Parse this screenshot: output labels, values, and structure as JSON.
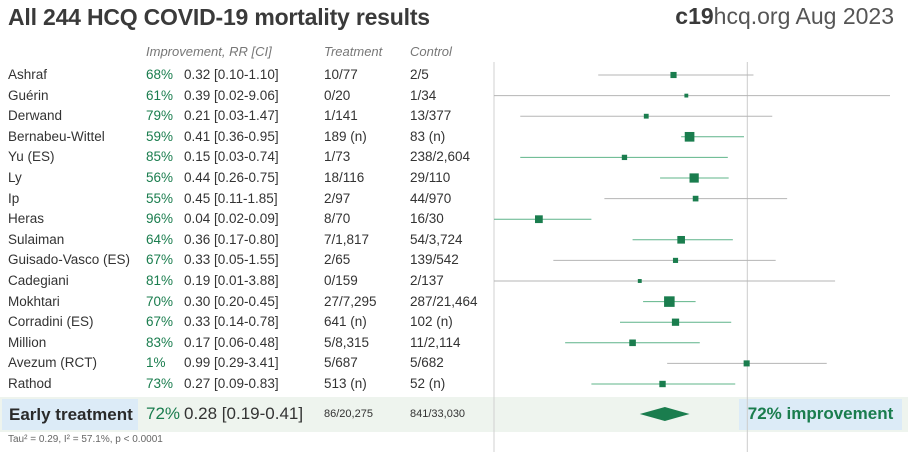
{
  "title": "All 244 HCQ COVID-19 mortality results",
  "brand": {
    "bold": "c19",
    "rest": "hcq.org Aug 2023"
  },
  "columns": {
    "improvement": "Improvement, RR [CI]",
    "treatment": "Treatment",
    "control": "Control"
  },
  "chart_data": {
    "type": "forest",
    "x_scale": "log",
    "reference_value": 1,
    "colors": {
      "marker": "#1a7d4e",
      "ci_line": "#5fb48a",
      "ci_line_crossing": "#b5b5b5",
      "reference_line": "#cccccc"
    },
    "studies": [
      {
        "name": "Ashraf",
        "improvement": "68%",
        "rr": 0.32,
        "ci_low": 0.1,
        "ci_high": 1.1,
        "rr_text": "0.32 [0.10-1.10]",
        "treatment": "10/77",
        "control": "2/5"
      },
      {
        "name": "Guérin",
        "improvement": "61%",
        "rr": 0.39,
        "ci_low": 0.02,
        "ci_high": 9.06,
        "rr_text": "0.39 [0.02-9.06]",
        "treatment": "0/20",
        "control": "1/34"
      },
      {
        "name": "Derwand",
        "improvement": "79%",
        "rr": 0.21,
        "ci_low": 0.03,
        "ci_high": 1.47,
        "rr_text": "0.21 [0.03-1.47]",
        "treatment": "1/141",
        "control": "13/377"
      },
      {
        "name": "Bernabeu-Wittel",
        "improvement": "59%",
        "rr": 0.41,
        "ci_low": 0.36,
        "ci_high": 0.95,
        "rr_text": "0.41 [0.36-0.95]",
        "treatment": "189 (n)",
        "control": "83 (n)"
      },
      {
        "name": "Yu (ES)",
        "improvement": "85%",
        "rr": 0.15,
        "ci_low": 0.03,
        "ci_high": 0.74,
        "rr_text": "0.15 [0.03-0.74]",
        "treatment": "1/73",
        "control": "238/2,604"
      },
      {
        "name": "Ly",
        "improvement": "56%",
        "rr": 0.44,
        "ci_low": 0.26,
        "ci_high": 0.75,
        "rr_text": "0.44 [0.26-0.75]",
        "treatment": "18/116",
        "control": "29/110"
      },
      {
        "name": "Ip",
        "improvement": "55%",
        "rr": 0.45,
        "ci_low": 0.11,
        "ci_high": 1.85,
        "rr_text": "0.45 [0.11-1.85]",
        "treatment": "2/97",
        "control": "44/970"
      },
      {
        "name": "Heras",
        "improvement": "96%",
        "rr": 0.04,
        "ci_low": 0.02,
        "ci_high": 0.09,
        "rr_text": "0.04 [0.02-0.09]",
        "treatment": "8/70",
        "control": "16/30"
      },
      {
        "name": "Sulaiman",
        "improvement": "64%",
        "rr": 0.36,
        "ci_low": 0.17,
        "ci_high": 0.8,
        "rr_text": "0.36 [0.17-0.80]",
        "treatment": "7/1,817",
        "control": "54/3,724"
      },
      {
        "name": "Guisado-Vasco (ES)",
        "improvement": "67%",
        "rr": 0.33,
        "ci_low": 0.05,
        "ci_high": 1.55,
        "rr_text": "0.33 [0.05-1.55]",
        "treatment": "2/65",
        "control": "139/542"
      },
      {
        "name": "Cadegiani",
        "improvement": "81%",
        "rr": 0.19,
        "ci_low": 0.01,
        "ci_high": 3.88,
        "rr_text": "0.19 [0.01-3.88]",
        "treatment": "0/159",
        "control": "2/137"
      },
      {
        "name": "Mokhtari",
        "improvement": "70%",
        "rr": 0.3,
        "ci_low": 0.2,
        "ci_high": 0.45,
        "rr_text": "0.30 [0.20-0.45]",
        "treatment": "27/7,295",
        "control": "287/21,464"
      },
      {
        "name": "Corradini (ES)",
        "improvement": "67%",
        "rr": 0.33,
        "ci_low": 0.14,
        "ci_high": 0.78,
        "rr_text": "0.33 [0.14-0.78]",
        "treatment": "641 (n)",
        "control": "102 (n)"
      },
      {
        "name": "Million",
        "improvement": "83%",
        "rr": 0.17,
        "ci_low": 0.06,
        "ci_high": 0.48,
        "rr_text": "0.17 [0.06-0.48]",
        "treatment": "5/8,315",
        "control": "11/2,114"
      },
      {
        "name": "Avezum (RCT)",
        "improvement": "1%",
        "rr": 0.99,
        "ci_low": 0.29,
        "ci_high": 3.41,
        "rr_text": "0.99 [0.29-3.41]",
        "treatment": "5/687",
        "control": "5/682"
      },
      {
        "name": "Rathod",
        "improvement": "73%",
        "rr": 0.27,
        "ci_low": 0.09,
        "ci_high": 0.83,
        "rr_text": "0.27 [0.09-0.83]",
        "treatment": "513 (n)",
        "control": "52 (n)"
      }
    ],
    "summary": {
      "label": "Early treatment",
      "improvement": "72%",
      "rr": 0.28,
      "ci_low": 0.19,
      "ci_high": 0.41,
      "rr_text": "0.28 [0.19-0.41]",
      "treatment": "86/20,275",
      "control": "841/33,030",
      "right_label": "72% improvement"
    },
    "footnote": "Tau² = 0.29, I² = 57.1%, p < 0.0001"
  }
}
